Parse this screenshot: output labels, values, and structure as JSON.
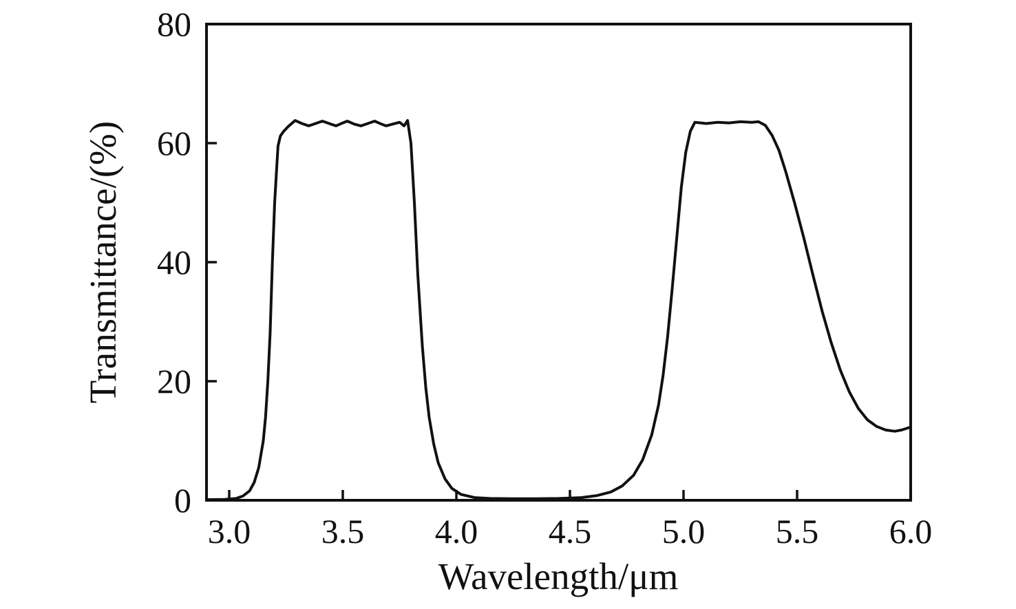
{
  "chart_data": {
    "type": "line",
    "title": "",
    "xlabel": "Wavelength/μm",
    "ylabel": "Transmittance/(%)",
    "xlim": [
      2.9,
      6.0
    ],
    "ylim": [
      0,
      80
    ],
    "x_ticks": [
      3.0,
      3.5,
      4.0,
      4.5,
      5.0,
      5.5,
      6.0
    ],
    "x_tick_labels": [
      "3.0",
      "3.5",
      "4.0",
      "4.5",
      "5.0",
      "5.5",
      "6.0"
    ],
    "y_ticks": [
      0,
      20,
      40,
      60,
      80
    ],
    "y_tick_labels": [
      "0",
      "20",
      "40",
      "60",
      "80"
    ],
    "grid": false,
    "legend": "none",
    "frame": "box",
    "tick_direction": "in",
    "line_color": "#111111",
    "background_color": "#ffffff",
    "series": [
      {
        "name": "transmittance",
        "points": [
          [
            2.9,
            0.1
          ],
          [
            2.98,
            0.15
          ],
          [
            3.03,
            0.3
          ],
          [
            3.06,
            0.7
          ],
          [
            3.09,
            1.6
          ],
          [
            3.11,
            3.0
          ],
          [
            3.13,
            5.5
          ],
          [
            3.15,
            10.0
          ],
          [
            3.16,
            14.0
          ],
          [
            3.17,
            20.0
          ],
          [
            3.18,
            28.0
          ],
          [
            3.19,
            40.0
          ],
          [
            3.2,
            50.0
          ],
          [
            3.21,
            56.5
          ],
          [
            3.215,
            59.5
          ],
          [
            3.225,
            61.2
          ],
          [
            3.24,
            62.0
          ],
          [
            3.26,
            62.8
          ],
          [
            3.29,
            63.8
          ],
          [
            3.32,
            63.3
          ],
          [
            3.35,
            62.9
          ],
          [
            3.38,
            63.3
          ],
          [
            3.41,
            63.7
          ],
          [
            3.44,
            63.3
          ],
          [
            3.47,
            62.9
          ],
          [
            3.5,
            63.4
          ],
          [
            3.52,
            63.7
          ],
          [
            3.55,
            63.2
          ],
          [
            3.58,
            62.9
          ],
          [
            3.61,
            63.3
          ],
          [
            3.64,
            63.7
          ],
          [
            3.67,
            63.2
          ],
          [
            3.69,
            62.9
          ],
          [
            3.72,
            63.2
          ],
          [
            3.75,
            63.5
          ],
          [
            3.77,
            62.9
          ],
          [
            3.785,
            63.8
          ],
          [
            3.8,
            60.0
          ],
          [
            3.815,
            50.0
          ],
          [
            3.83,
            38.0
          ],
          [
            3.85,
            26.0
          ],
          [
            3.865,
            19.0
          ],
          [
            3.88,
            14.0
          ],
          [
            3.9,
            9.5
          ],
          [
            3.92,
            6.3
          ],
          [
            3.95,
            3.6
          ],
          [
            3.98,
            2.0
          ],
          [
            4.02,
            1.0
          ],
          [
            4.08,
            0.45
          ],
          [
            4.15,
            0.3
          ],
          [
            4.25,
            0.25
          ],
          [
            4.35,
            0.25
          ],
          [
            4.45,
            0.3
          ],
          [
            4.55,
            0.45
          ],
          [
            4.62,
            0.8
          ],
          [
            4.68,
            1.4
          ],
          [
            4.73,
            2.4
          ],
          [
            4.78,
            4.2
          ],
          [
            4.82,
            6.8
          ],
          [
            4.86,
            11.0
          ],
          [
            4.89,
            16.0
          ],
          [
            4.91,
            21.0
          ],
          [
            4.93,
            27.5
          ],
          [
            4.95,
            35.5
          ],
          [
            4.97,
            44.0
          ],
          [
            4.99,
            52.5
          ],
          [
            5.01,
            58.5
          ],
          [
            5.03,
            62.0
          ],
          [
            5.05,
            63.5
          ],
          [
            5.1,
            63.3
          ],
          [
            5.15,
            63.5
          ],
          [
            5.2,
            63.4
          ],
          [
            5.25,
            63.6
          ],
          [
            5.3,
            63.5
          ],
          [
            5.33,
            63.6
          ],
          [
            5.36,
            63.0
          ],
          [
            5.39,
            61.3
          ],
          [
            5.42,
            58.8
          ],
          [
            5.45,
            55.2
          ],
          [
            5.49,
            49.8
          ],
          [
            5.53,
            44.0
          ],
          [
            5.57,
            37.8
          ],
          [
            5.61,
            31.8
          ],
          [
            5.65,
            26.5
          ],
          [
            5.69,
            21.9
          ],
          [
            5.73,
            18.2
          ],
          [
            5.77,
            15.4
          ],
          [
            5.81,
            13.5
          ],
          [
            5.85,
            12.4
          ],
          [
            5.89,
            11.8
          ],
          [
            5.93,
            11.6
          ],
          [
            5.96,
            11.8
          ],
          [
            6.0,
            12.3
          ]
        ]
      }
    ]
  }
}
